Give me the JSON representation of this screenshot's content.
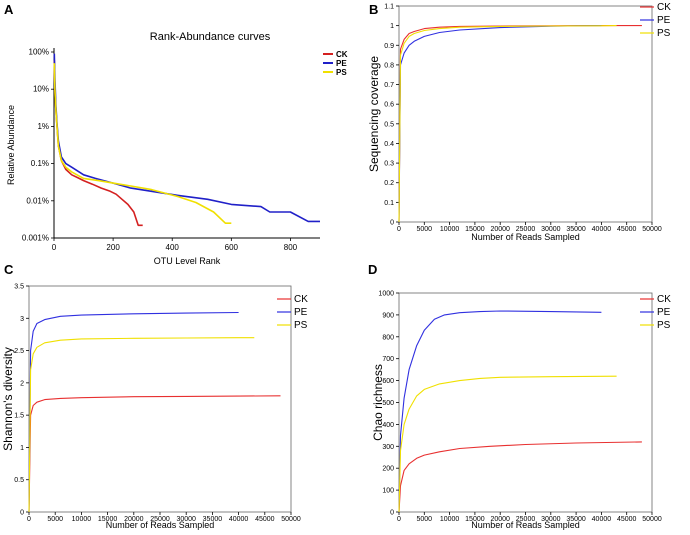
{
  "chart_data": [
    {
      "panel": "A",
      "type": "line",
      "title": "Rank-Abundance curves",
      "xlabel": "OTU Level Rank",
      "ylabel": "Relative Abundance",
      "xlim": [
        0,
        900
      ],
      "ylim_log10": [
        -5,
        0
      ],
      "y_scale": "log",
      "x_ticks": [
        0,
        200,
        400,
        600,
        800
      ],
      "y_ticks": [
        1,
        0.1,
        0.01,
        0.001,
        0.0001,
        1e-05
      ],
      "y_tick_labels": [
        "100%",
        "10%",
        "1%",
        "0.1%",
        "0.01%",
        "0.001%"
      ],
      "legend_position": "top-right",
      "series": [
        {
          "name": "CK",
          "color": "#d42020",
          "x": [
            1,
            3,
            6,
            10,
            15,
            25,
            40,
            60,
            80,
            100,
            130,
            160,
            190,
            210,
            230,
            250,
            270,
            285,
            300
          ],
          "y": [
            0.6,
            0.1,
            0.03,
            0.01,
            0.003,
            0.0012,
            0.0007,
            0.0005,
            0.00042,
            0.00035,
            0.00028,
            0.00022,
            0.00018,
            0.00015,
            0.00011,
            8e-05,
            5e-05,
            2.2e-05,
            2.2e-05
          ]
        },
        {
          "name": "PE",
          "color": "#2020c8",
          "x": [
            1,
            3,
            6,
            10,
            15,
            25,
            40,
            60,
            100,
            140,
            200,
            260,
            330,
            420,
            520,
            600,
            700,
            730,
            800,
            860,
            900
          ],
          "y": [
            0.9,
            0.2,
            0.04,
            0.012,
            0.004,
            0.0015,
            0.001,
            0.0008,
            0.0005,
            0.0004,
            0.0003,
            0.00022,
            0.00018,
            0.00014,
            0.00011,
            8e-05,
            7e-05,
            5e-05,
            5e-05,
            2.8e-05,
            2.8e-05
          ]
        },
        {
          "name": "PS",
          "color": "#f0e000",
          "x": [
            1,
            3,
            6,
            10,
            15,
            25,
            40,
            60,
            100,
            150,
            200,
            260,
            330,
            420,
            480,
            540,
            580,
            600
          ],
          "y": [
            0.5,
            0.1,
            0.03,
            0.01,
            0.003,
            0.0012,
            0.0008,
            0.0006,
            0.0004,
            0.00035,
            0.0003,
            0.00025,
            0.0002,
            0.00013,
            9e-05,
            5e-05,
            2.5e-05,
            2.5e-05
          ]
        }
      ]
    },
    {
      "panel": "B",
      "type": "line",
      "xlabel": "Number of Reads Sampled",
      "ylabel": "Sequencing coverage",
      "xlim": [
        0,
        50000
      ],
      "ylim": [
        0,
        1.1
      ],
      "x_ticks": [
        0,
        5000,
        10000,
        15000,
        20000,
        25000,
        30000,
        35000,
        40000,
        45000,
        50000
      ],
      "y_ticks": [
        0,
        0.1,
        0.2,
        0.3,
        0.4,
        0.5,
        0.6,
        0.7,
        0.8,
        0.9,
        1,
        1.1
      ],
      "legend_position": "top-right",
      "series": [
        {
          "name": "CK",
          "color": "#e83030",
          "x": [
            0,
            300,
            1000,
            2000,
            3000,
            5000,
            8000,
            12000,
            20000,
            30000,
            40000,
            48000
          ],
          "y": [
            0,
            0.88,
            0.93,
            0.96,
            0.97,
            0.985,
            0.992,
            0.996,
            0.998,
            0.999,
            1,
            1
          ]
        },
        {
          "name": "PE",
          "color": "#3030e0",
          "x": [
            0,
            300,
            1000,
            2000,
            3000,
            5000,
            8000,
            12000,
            20000,
            30000,
            35000,
            40000
          ],
          "y": [
            0,
            0.8,
            0.86,
            0.9,
            0.92,
            0.945,
            0.965,
            0.978,
            0.99,
            0.997,
            0.999,
            1
          ]
        },
        {
          "name": "PS",
          "color": "#f0e000",
          "x": [
            0,
            300,
            1000,
            2000,
            3000,
            5000,
            8000,
            12000,
            20000,
            30000,
            40000,
            43000
          ],
          "y": [
            0,
            0.85,
            0.91,
            0.945,
            0.96,
            0.975,
            0.985,
            0.992,
            0.996,
            0.998,
            0.999,
            1
          ]
        }
      ]
    },
    {
      "panel": "C",
      "type": "line",
      "xlabel": "Number of Reads Sampled",
      "ylabel": "Shannon's diversity",
      "xlim": [
        0,
        50000
      ],
      "ylim": [
        0,
        3.5
      ],
      "x_ticks": [
        0,
        5000,
        10000,
        15000,
        20000,
        25000,
        30000,
        35000,
        40000,
        45000,
        50000
      ],
      "y_ticks": [
        0,
        0.5,
        1,
        1.5,
        2,
        2.5,
        3,
        3.5
      ],
      "legend_position": "top-right",
      "series": [
        {
          "name": "CK",
          "color": "#e83030",
          "x": [
            0,
            300,
            800,
            1500,
            3000,
            6000,
            10000,
            20000,
            30000,
            40000,
            48000
          ],
          "y": [
            0,
            1.5,
            1.65,
            1.7,
            1.74,
            1.76,
            1.77,
            1.785,
            1.79,
            1.795,
            1.8
          ]
        },
        {
          "name": "PE",
          "color": "#3030e0",
          "x": [
            0,
            300,
            800,
            1500,
            3000,
            6000,
            10000,
            20000,
            30000,
            40000
          ],
          "y": [
            0,
            2.5,
            2.8,
            2.92,
            2.98,
            3.03,
            3.05,
            3.07,
            3.08,
            3.09
          ]
        },
        {
          "name": "PS",
          "color": "#f0e000",
          "x": [
            0,
            300,
            800,
            1500,
            3000,
            6000,
            10000,
            20000,
            30000,
            40000,
            43000
          ],
          "y": [
            0,
            2.2,
            2.45,
            2.55,
            2.62,
            2.66,
            2.68,
            2.69,
            2.695,
            2.7,
            2.7
          ]
        }
      ]
    },
    {
      "panel": "D",
      "type": "line",
      "xlabel": "Number of Reads Sampled",
      "ylabel": "Chao richness",
      "xlim": [
        0,
        50000
      ],
      "ylim": [
        0,
        1000
      ],
      "x_ticks": [
        0,
        5000,
        10000,
        15000,
        20000,
        25000,
        30000,
        35000,
        40000,
        45000,
        50000
      ],
      "y_ticks": [
        0,
        100,
        200,
        300,
        400,
        500,
        600,
        700,
        800,
        900,
        1000
      ],
      "legend_position": "top-right",
      "series": [
        {
          "name": "CK",
          "color": "#e83030",
          "x": [
            0,
            300,
            1000,
            2000,
            3500,
            5000,
            8000,
            12000,
            18000,
            25000,
            35000,
            48000
          ],
          "y": [
            0,
            120,
            190,
            220,
            245,
            260,
            275,
            290,
            300,
            308,
            315,
            320
          ]
        },
        {
          "name": "PE",
          "color": "#3030e0",
          "x": [
            0,
            300,
            1000,
            2000,
            3500,
            5000,
            7000,
            9000,
            12000,
            16000,
            20000,
            30000,
            40000
          ],
          "y": [
            0,
            350,
            520,
            650,
            760,
            830,
            880,
            900,
            910,
            915,
            918,
            915,
            912
          ]
        },
        {
          "name": "PS",
          "color": "#f0e000",
          "x": [
            0,
            300,
            1000,
            2000,
            3500,
            5000,
            8000,
            12000,
            16000,
            20000,
            30000,
            43000
          ],
          "y": [
            0,
            280,
            400,
            470,
            530,
            560,
            585,
            600,
            610,
            615,
            618,
            620
          ]
        }
      ]
    }
  ]
}
